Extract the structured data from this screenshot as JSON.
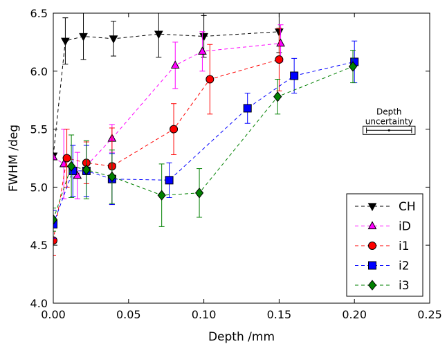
{
  "chart_data": {
    "type": "scatter",
    "xlabel": "Depth /mm",
    "ylabel": "FWHM /deg",
    "xlim": [
      0.0,
      0.25
    ],
    "ylim": [
      4.0,
      6.5
    ],
    "xticks": [
      "0.00",
      "0.05",
      "0.10",
      "0.15",
      "0.20",
      "0.25"
    ],
    "yticks": [
      "4.0",
      "4.5",
      "5.0",
      "5.5",
      "6.0",
      "6.5"
    ],
    "legend_position": "bottom-right",
    "grid": false,
    "annotation": {
      "line1": "Depth",
      "line2": "uncertainty",
      "center": [
        0.223,
        5.49
      ],
      "xerr": 0.015
    },
    "series": [
      {
        "name": "CH",
        "color": "#000000",
        "marker": "triangle-down",
        "points": [
          {
            "x": 0.0,
            "y": 5.27,
            "err": 0.0
          },
          {
            "x": 0.008,
            "y": 6.26,
            "err": 0.2
          },
          {
            "x": 0.02,
            "y": 6.3,
            "err": 0.2
          },
          {
            "x": 0.04,
            "y": 6.28,
            "err": 0.15
          },
          {
            "x": 0.07,
            "y": 6.32,
            "err": 0.2
          },
          {
            "x": 0.1,
            "y": 6.3,
            "err": 0.18
          },
          {
            "x": 0.15,
            "y": 6.34,
            "err": 0.18
          }
        ]
      },
      {
        "name": "iD",
        "color": "#ff00ff",
        "marker": "triangle-up",
        "points": [
          {
            "x": 0.0,
            "y": 5.26,
            "err": 0.0
          },
          {
            "x": 0.007,
            "y": 5.2,
            "err": 0.3
          },
          {
            "x": 0.016,
            "y": 5.1,
            "err": 0.2
          },
          {
            "x": 0.039,
            "y": 5.42,
            "err": 0.12
          },
          {
            "x": 0.081,
            "y": 6.05,
            "err": 0.2
          },
          {
            "x": 0.099,
            "y": 6.17,
            "err": 0.17
          },
          {
            "x": 0.151,
            "y": 6.24,
            "err": 0.16
          }
        ]
      },
      {
        "name": "i1",
        "color": "#ff0000",
        "marker": "circle",
        "points": [
          {
            "x": 0.0,
            "y": 4.54,
            "err": 0.13
          },
          {
            "x": 0.009,
            "y": 5.25,
            "err": 0.25
          },
          {
            "x": 0.022,
            "y": 5.21,
            "err": 0.18
          },
          {
            "x": 0.039,
            "y": 5.18,
            "err": 0.33
          },
          {
            "x": 0.08,
            "y": 5.5,
            "err": 0.22
          },
          {
            "x": 0.104,
            "y": 5.93,
            "err": 0.3
          },
          {
            "x": 0.15,
            "y": 6.1,
            "err": 0.27
          }
        ]
      },
      {
        "name": "i2",
        "color": "#0000ff",
        "marker": "square",
        "points": [
          {
            "x": 0.0,
            "y": 4.68,
            "err": 0.12
          },
          {
            "x": 0.013,
            "y": 5.14,
            "err": 0.22
          },
          {
            "x": 0.022,
            "y": 5.14,
            "err": 0.22
          },
          {
            "x": 0.039,
            "y": 5.07,
            "err": 0.22
          },
          {
            "x": 0.077,
            "y": 5.06,
            "err": 0.15
          },
          {
            "x": 0.129,
            "y": 5.68,
            "err": 0.13
          },
          {
            "x": 0.16,
            "y": 5.96,
            "err": 0.15
          },
          {
            "x": 0.2,
            "y": 6.08,
            "err": 0.18
          }
        ]
      },
      {
        "name": "i3",
        "color": "#008000",
        "marker": "diamond",
        "points": [
          {
            "x": 0.0,
            "y": 4.72,
            "err": 0.1
          },
          {
            "x": 0.012,
            "y": 5.18,
            "err": 0.27
          },
          {
            "x": 0.022,
            "y": 5.15,
            "err": 0.25
          },
          {
            "x": 0.039,
            "y": 5.09,
            "err": 0.23
          },
          {
            "x": 0.072,
            "y": 4.93,
            "err": 0.27
          },
          {
            "x": 0.097,
            "y": 4.95,
            "err": 0.21
          },
          {
            "x": 0.149,
            "y": 5.78,
            "err": 0.15
          },
          {
            "x": 0.199,
            "y": 6.04,
            "err": 0.14
          }
        ]
      }
    ]
  }
}
